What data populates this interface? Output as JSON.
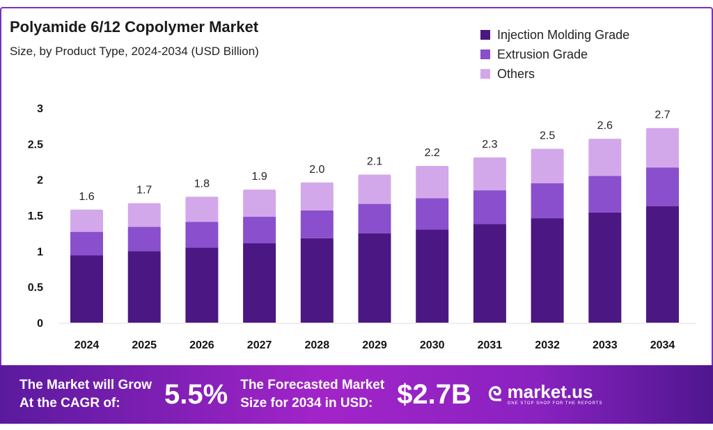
{
  "chart_data": {
    "type": "bar",
    "stacked": true,
    "title": "Polyamide 6/12 Copolymer Market",
    "subtitle": "Size, by Product Type, 2024-2034 (USD Billion)",
    "xlabel": "",
    "ylabel": "",
    "ylim": [
      0,
      3
    ],
    "yticks": [
      "0",
      "0.5",
      "1",
      "1.5",
      "2",
      "2.5",
      "3"
    ],
    "grid": false,
    "legend_position": "top-right",
    "categories": [
      "2024",
      "2025",
      "2026",
      "2027",
      "2028",
      "2029",
      "2030",
      "2031",
      "2032",
      "2033",
      "2034"
    ],
    "series": [
      {
        "name": "Injection Molding Grade",
        "color": "#4b1782",
        "values": [
          0.94,
          1.0,
          1.05,
          1.11,
          1.18,
          1.25,
          1.3,
          1.38,
          1.46,
          1.54,
          1.63
        ]
      },
      {
        "name": "Extrusion Grade",
        "color": "#8a4fcc",
        "values": [
          0.33,
          0.34,
          0.36,
          0.37,
          0.39,
          0.41,
          0.44,
          0.47,
          0.49,
          0.51,
          0.54
        ]
      },
      {
        "name": "Others",
        "color": "#d3a8ea",
        "values": [
          0.31,
          0.33,
          0.35,
          0.38,
          0.39,
          0.41,
          0.45,
          0.46,
          0.48,
          0.52,
          0.55
        ]
      }
    ],
    "totals": [
      "1.6",
      "1.7",
      "1.8",
      "1.9",
      "2.0",
      "2.1",
      "2.2",
      "2.3",
      "2.5",
      "2.6",
      "2.7"
    ]
  },
  "footer": {
    "cagr_label_1": "The Market will Grow",
    "cagr_label_2": "At the CAGR of:",
    "cagr_value": "5.5%",
    "forecast_label_1": "The Forecasted Market",
    "forecast_label_2": "Size for 2034 in USD:",
    "forecast_value": "$2.7B",
    "brand": "market.us",
    "brand_tagline": "ONE STOP SHOP FOR THE REPORTS"
  }
}
